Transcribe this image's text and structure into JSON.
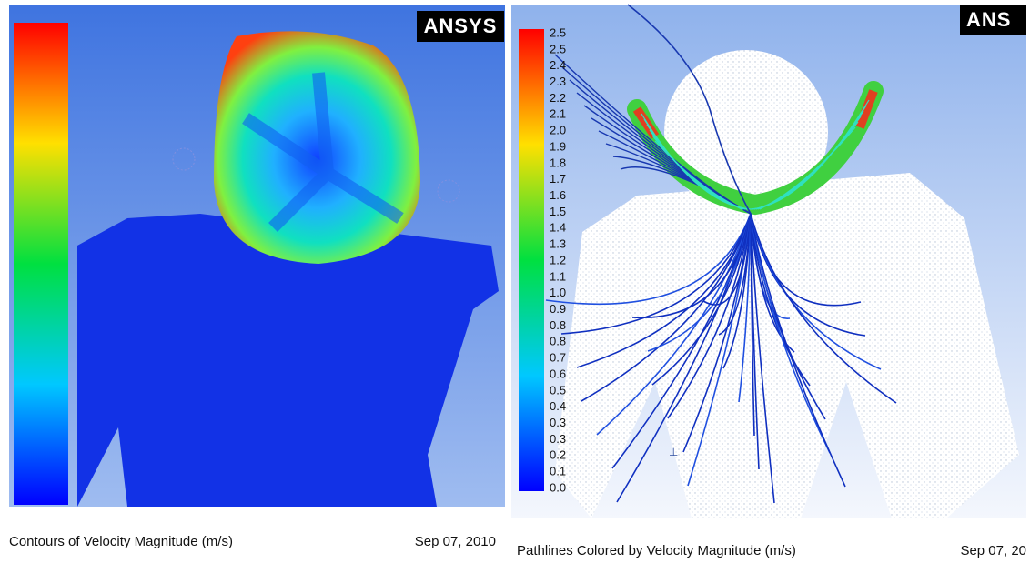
{
  "left_panel": {
    "logo": "ANSYS",
    "caption": "Contours of Velocity Magnitude (m/s)",
    "date": "Sep 07, 2010"
  },
  "right_panel": {
    "logo": "ANS",
    "colorbar_labels": [
      "2.5",
      "2.5",
      "2.4",
      "2.3",
      "2.2",
      "2.1",
      "2.0",
      "1.9",
      "1.8",
      "1.7",
      "1.6",
      "1.5",
      "1.4",
      "1.3",
      "1.2",
      "1.1",
      "1.0",
      "0.9",
      "0.8",
      "0.8",
      "0.7",
      "0.6",
      "0.5",
      "0.4",
      "0.3",
      "0.3",
      "0.2",
      "0.1",
      "0.0"
    ],
    "caption": "Pathlines Colored by Velocity Magnitude (m/s)",
    "date": "Sep 07, 20"
  }
}
